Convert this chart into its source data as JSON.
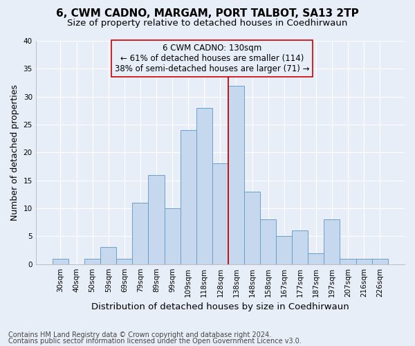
{
  "title": "6, CWM CADNO, MARGAM, PORT TALBOT, SA13 2TP",
  "subtitle": "Size of property relative to detached houses in Coedhirwaun",
  "xlabel": "Distribution of detached houses by size in Coedhirwaun",
  "ylabel": "Number of detached properties",
  "categories": [
    "30sqm",
    "40sqm",
    "50sqm",
    "59sqm",
    "69sqm",
    "79sqm",
    "89sqm",
    "99sqm",
    "109sqm",
    "118sqm",
    "128sqm",
    "138sqm",
    "148sqm",
    "158sqm",
    "167sqm",
    "177sqm",
    "187sqm",
    "197sqm",
    "207sqm",
    "216sqm",
    "226sqm"
  ],
  "values": [
    1,
    0,
    1,
    3,
    1,
    11,
    16,
    10,
    24,
    28,
    18,
    32,
    13,
    8,
    5,
    6,
    2,
    8,
    1,
    1,
    1
  ],
  "bar_color": "#c5d8ed",
  "bar_edge_color": "#6a9fc8",
  "vline_index": 11,
  "annotation_text": "6 CWM CADNO: 130sqm\n← 61% of detached houses are smaller (114)\n38% of semi-detached houses are larger (71) →",
  "vline_color": "#cc0000",
  "annotation_box_edge_color": "#cc0000",
  "ylim": [
    0,
    40
  ],
  "yticks": [
    0,
    5,
    10,
    15,
    20,
    25,
    30,
    35,
    40
  ],
  "background_color": "#e8eef8",
  "grid_color": "#ffffff",
  "footer_line1": "Contains HM Land Registry data © Crown copyright and database right 2024.",
  "footer_line2": "Contains public sector information licensed under the Open Government Licence v3.0.",
  "title_fontsize": 11,
  "subtitle_fontsize": 9.5,
  "ylabel_fontsize": 9,
  "xlabel_fontsize": 9.5,
  "tick_fontsize": 7.5,
  "annotation_fontsize": 8.5,
  "footer_fontsize": 7
}
